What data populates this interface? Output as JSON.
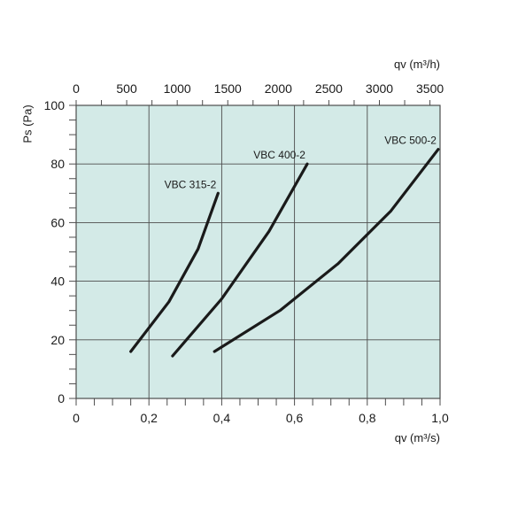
{
  "chart_data": {
    "type": "line",
    "xlabel_bottom": "qv (m³/s)",
    "xlabel_top": "qv (m³/h)",
    "ylabel": "Ps (Pa)",
    "xlim": [
      0,
      1.0
    ],
    "ylim": [
      0,
      100
    ],
    "top_xlim": [
      0,
      3600
    ],
    "x_ticks": [
      {
        "value": 0,
        "label": "0"
      },
      {
        "value": 0.2,
        "label": "0,2"
      },
      {
        "value": 0.4,
        "label": "0,4"
      },
      {
        "value": 0.6,
        "label": "0,6"
      },
      {
        "value": 0.8,
        "label": "0,8"
      },
      {
        "value": 1.0,
        "label": "1,0"
      }
    ],
    "top_ticks": [
      {
        "value": 0,
        "label": "0"
      },
      {
        "value": 500,
        "label": "500"
      },
      {
        "value": 1000,
        "label": "1000"
      },
      {
        "value": 1500,
        "label": "1500"
      },
      {
        "value": 2000,
        "label": "2000"
      },
      {
        "value": 2500,
        "label": "2500"
      },
      {
        "value": 3000,
        "label": "3000"
      },
      {
        "value": 3500,
        "label": "3500"
      }
    ],
    "y_ticks": [
      {
        "value": 0,
        "label": "0"
      },
      {
        "value": 20,
        "label": "20"
      },
      {
        "value": 40,
        "label": "40"
      },
      {
        "value": 60,
        "label": "60"
      },
      {
        "value": 80,
        "label": "80"
      },
      {
        "value": 100,
        "label": "100"
      }
    ],
    "grid": true,
    "colors": {
      "plot_background": "#d3eae7",
      "grid": "#4d4d4d",
      "line": "#1a1a1a"
    },
    "series": [
      {
        "name": "VBC 315-2",
        "points": [
          [
            0.15,
            16
          ],
          [
            0.255,
            33
          ],
          [
            0.335,
            51
          ],
          [
            0.39,
            70
          ]
        ]
      },
      {
        "name": "VBC 400-2",
        "points": [
          [
            0.265,
            14.5
          ],
          [
            0.4,
            34
          ],
          [
            0.53,
            57
          ],
          [
            0.635,
            80
          ]
        ]
      },
      {
        "name": "VBC 500-2",
        "points": [
          [
            0.38,
            16
          ],
          [
            0.56,
            30
          ],
          [
            0.72,
            46
          ],
          [
            0.865,
            64
          ],
          [
            0.995,
            85
          ]
        ]
      }
    ]
  }
}
